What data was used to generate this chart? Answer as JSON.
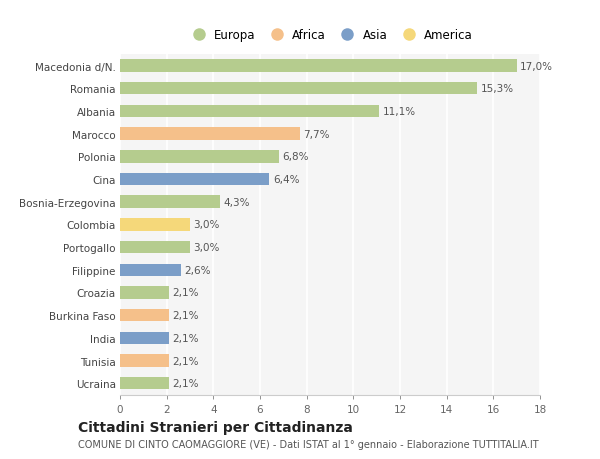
{
  "categories": [
    "Macedonia d/N.",
    "Romania",
    "Albania",
    "Marocco",
    "Polonia",
    "Cina",
    "Bosnia-Erzegovina",
    "Colombia",
    "Portogallo",
    "Filippine",
    "Croazia",
    "Burkina Faso",
    "India",
    "Tunisia",
    "Ucraina"
  ],
  "values": [
    17.0,
    15.3,
    11.1,
    7.7,
    6.8,
    6.4,
    4.3,
    3.0,
    3.0,
    2.6,
    2.1,
    2.1,
    2.1,
    2.1,
    2.1
  ],
  "labels": [
    "17,0%",
    "15,3%",
    "11,1%",
    "7,7%",
    "6,8%",
    "6,4%",
    "4,3%",
    "3,0%",
    "3,0%",
    "2,6%",
    "2,1%",
    "2,1%",
    "2,1%",
    "2,1%",
    "2,1%"
  ],
  "continents": [
    "Europa",
    "Europa",
    "Europa",
    "Africa",
    "Europa",
    "Asia",
    "Europa",
    "America",
    "Europa",
    "Asia",
    "Europa",
    "Africa",
    "Asia",
    "Africa",
    "Europa"
  ],
  "colors": {
    "Europa": "#b5cc8e",
    "Africa": "#f5c08a",
    "Asia": "#7b9ec8",
    "America": "#f5d87a"
  },
  "xlim": [
    0,
    18
  ],
  "xticks": [
    0,
    2,
    4,
    6,
    8,
    10,
    12,
    14,
    16,
    18
  ],
  "title": "Cittadini Stranieri per Cittadinanza",
  "subtitle": "COMUNE DI CINTO CAOMAGGIORE (VE) - Dati ISTAT al 1° gennaio - Elaborazione TUTTITALIA.IT",
  "bg_color": "#ffffff",
  "plot_bg_color": "#f5f5f5",
  "grid_color": "#ffffff",
  "bar_height": 0.55,
  "label_fontsize": 7.5,
  "tick_fontsize": 7.5,
  "title_fontsize": 10,
  "subtitle_fontsize": 7
}
